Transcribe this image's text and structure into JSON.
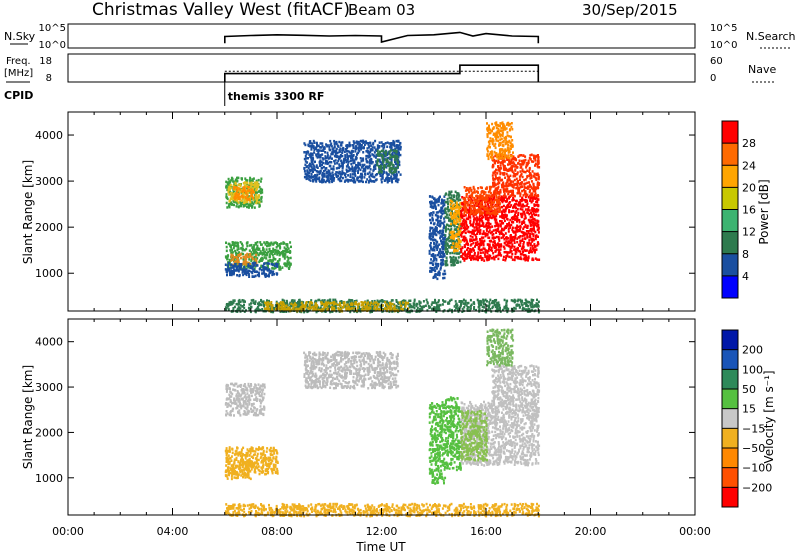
{
  "header": {
    "radar": "Christmas Valley West (fitACF)",
    "beam": "Beam 03",
    "date": "30/Sep/2015"
  },
  "chart_data": [
    {
      "type": "line",
      "panel": "noise",
      "left_label": "N.Sky",
      "right_label": "N.Search",
      "left_ticks": [
        "10^5",
        "10^0"
      ],
      "right_ticks": [
        "10^5",
        "10^0"
      ],
      "x_range_hours": [
        0,
        24
      ],
      "series": [
        {
          "x": [
            6.0,
            6.0,
            7.0,
            8.0,
            9.0,
            10.0,
            11.0,
            12.0,
            12.0,
            13.0,
            14.0,
            15.0,
            15.5,
            16.0,
            17.0,
            18.0,
            18.0
          ],
          "y": [
            0.2,
            0.48,
            0.52,
            0.55,
            0.53,
            0.5,
            0.52,
            0.5,
            0.25,
            0.52,
            0.55,
            0.65,
            0.5,
            0.6,
            0.5,
            0.48,
            0.2
          ]
        }
      ]
    },
    {
      "type": "line",
      "panel": "frequency",
      "left_label_top": "Freq.",
      "left_label_bottom": "[MHz]",
      "left_ticks": [
        "18",
        "8"
      ],
      "right_ticks": [
        "60",
        "0"
      ],
      "right_label": "Nave",
      "cpid_label": "CPID",
      "cpid_text": "themis 3300 RF",
      "cpid_start_hour": 6.0,
      "freq_y_range": [
        8,
        18
      ],
      "nave_y_range": [
        0,
        60
      ],
      "frequency": {
        "x": [
          6.0,
          6.0,
          12.0,
          12.0,
          15.0,
          15.0,
          18.0,
          18.0
        ],
        "y": [
          8,
          11,
          11,
          11,
          11,
          14,
          14,
          8
        ]
      },
      "nave": {
        "x": [
          6.0,
          18.0
        ],
        "y": [
          23,
          23
        ]
      }
    },
    {
      "type": "heatmap",
      "panel": "power",
      "ylabel": "Slant Range [km]",
      "ylim": [
        180,
        4500
      ],
      "yticks": [
        1000,
        2000,
        3000,
        4000
      ],
      "x_range_hours": [
        0,
        24
      ],
      "colorbar_label": "Power [dB]",
      "colorbar_ticks": [
        4,
        8,
        12,
        16,
        20,
        24,
        28
      ],
      "colorbar_range": [
        0,
        32
      ],
      "colorbar_colors": [
        "#0000ff",
        "#1a4fa0",
        "#2e7a4e",
        "#3cb371",
        "#c8c800",
        "#ffa500",
        "#ff6a00",
        "#ff0000"
      ],
      "regions": [
        {
          "t": [
            6.0,
            7.4
          ],
          "r": [
            2450,
            3100
          ],
          "c": "#3aa040"
        },
        {
          "t": [
            6.1,
            7.3
          ],
          "r": [
            2550,
            3000
          ],
          "c": "#e0c020"
        },
        {
          "t": [
            6.3,
            7.1
          ],
          "r": [
            2600,
            2900
          ],
          "c": "#ff8c00"
        },
        {
          "t": [
            6.0,
            8.5
          ],
          "r": [
            1100,
            1700
          ],
          "c": "#3aa040"
        },
        {
          "t": [
            6.2,
            7.2
          ],
          "r": [
            1200,
            1450
          ],
          "c": "#e08a20"
        },
        {
          "t": [
            6.0,
            8.0
          ],
          "r": [
            950,
            1250
          ],
          "c": "#1a4fa0"
        },
        {
          "t": [
            9.0,
            12.7
          ],
          "r": [
            3000,
            3900
          ],
          "c": "#1a4fa0"
        },
        {
          "t": [
            11.8,
            12.6
          ],
          "r": [
            3200,
            3700
          ],
          "c": "#2e7a4e"
        },
        {
          "t": [
            13.8,
            14.4
          ],
          "r": [
            900,
            2700
          ],
          "c": "#1a4fa0"
        },
        {
          "t": [
            14.4,
            15.0
          ],
          "r": [
            1200,
            2800
          ],
          "c": "#2e7a4e"
        },
        {
          "t": [
            14.6,
            15.0
          ],
          "r": [
            1500,
            2600
          ],
          "c": "#ffa500"
        },
        {
          "t": [
            15.0,
            18.0
          ],
          "r": [
            1300,
            2700
          ],
          "c": "#ff0000"
        },
        {
          "t": [
            15.1,
            16.5
          ],
          "r": [
            2300,
            2900
          ],
          "c": "#ff4500"
        },
        {
          "t": [
            16.2,
            18.0
          ],
          "r": [
            2700,
            3600
          ],
          "c": "#ff3000"
        },
        {
          "t": [
            16.0,
            17.0
          ],
          "r": [
            3500,
            4300
          ],
          "c": "#ff8c00"
        },
        {
          "t": [
            6.0,
            18.0
          ],
          "r": [
            180,
            450
          ],
          "c": "#2e7a4e"
        },
        {
          "t": [
            7.5,
            13.0
          ],
          "r": [
            200,
            400
          ],
          "c": "#c8a000"
        }
      ]
    },
    {
      "type": "heatmap",
      "panel": "velocity",
      "ylabel": "Slant Range [km]",
      "ylim": [
        180,
        4500
      ],
      "yticks": [
        1000,
        2000,
        3000,
        4000
      ],
      "x_range_hours": [
        0,
        24
      ],
      "xticks": [
        "00:00",
        "04:00",
        "08:00",
        "12:00",
        "16:00",
        "20:00",
        "00:00"
      ],
      "xlabel": "Time UT",
      "colorbar_label": "Velocity [m s⁻¹]",
      "colorbar_ticks": [
        "200",
        "100",
        "50",
        "15",
        "−15",
        "−50",
        "−100",
        "−200"
      ],
      "colorbar_colors": [
        "#0018a8",
        "#1a55b8",
        "#2e8a5a",
        "#55c040",
        "#c8c8c8",
        "#f0b020",
        "#ff8800",
        "#ff5000",
        "#ff0000"
      ],
      "regions": [
        {
          "t": [
            6.0,
            7.5
          ],
          "r": [
            2400,
            3100
          ],
          "c": "#bcbcbc"
        },
        {
          "t": [
            6.0,
            8.0
          ],
          "r": [
            1100,
            1700
          ],
          "c": "#f0b020"
        },
        {
          "t": [
            6.0,
            7.0
          ],
          "r": [
            1000,
            1400
          ],
          "c": "#f0b020"
        },
        {
          "t": [
            9.0,
            12.6
          ],
          "r": [
            3000,
            3800
          ],
          "c": "#bcbcbc"
        },
        {
          "t": [
            13.8,
            14.4
          ],
          "r": [
            900,
            2700
          ],
          "c": "#55c040"
        },
        {
          "t": [
            14.4,
            15.0
          ],
          "r": [
            1200,
            2800
          ],
          "c": "#55c040"
        },
        {
          "t": [
            15.0,
            18.0
          ],
          "r": [
            1300,
            2700
          ],
          "c": "#c0c0c0"
        },
        {
          "t": [
            15.0,
            16.0
          ],
          "r": [
            1400,
            2500
          ],
          "c": "#88c050"
        },
        {
          "t": [
            16.2,
            18.0
          ],
          "r": [
            2700,
            3500
          ],
          "c": "#c0c0c0"
        },
        {
          "t": [
            16.0,
            17.0
          ],
          "r": [
            3500,
            4300
          ],
          "c": "#7ab860"
        },
        {
          "t": [
            6.0,
            18.0
          ],
          "r": [
            180,
            450
          ],
          "c": "#f0b020"
        }
      ]
    }
  ]
}
